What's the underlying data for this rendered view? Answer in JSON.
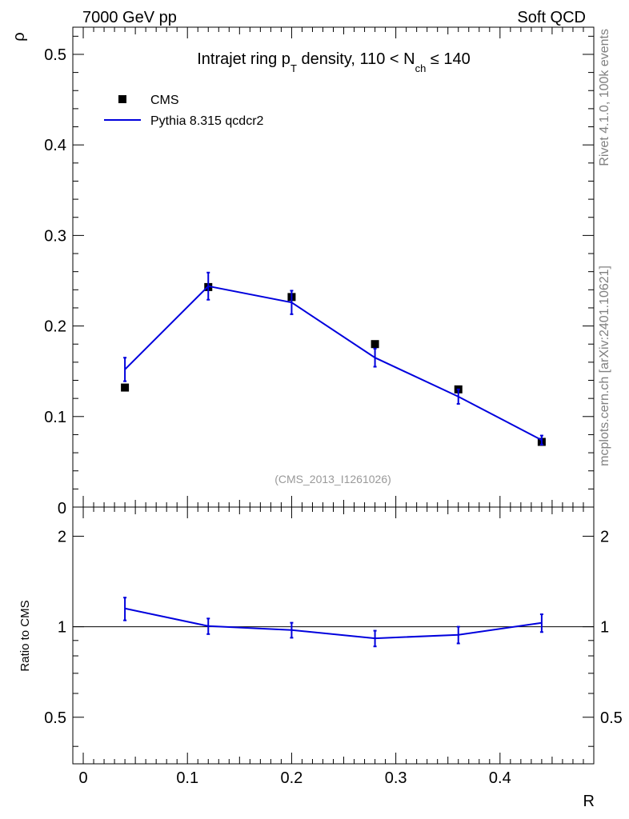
{
  "chart_data": [
    {
      "type": "line",
      "panel": "main",
      "title": "Intrajet ring p_T density, 110 < N_ch ≤ 140",
      "title_parts": {
        "prefix": "Intrajet ring p",
        "sub1": "T",
        "middle": " density, 110 < N",
        "sub2": "ch",
        "suffix": " ≤ 140"
      },
      "top_left": "7000 GeV pp",
      "top_right": "Soft QCD",
      "xlabel": "R",
      "ylabel": "ρ",
      "xlim": [
        -0.01,
        0.49
      ],
      "ylim": [
        0,
        0.53
      ],
      "yticks_major": [
        0.1,
        0.2,
        0.3,
        0.4,
        0.5
      ],
      "ytick_labels": [
        "0.1",
        "0.2",
        "0.3",
        "0.4",
        "0.5"
      ],
      "y_zero_label": "0",
      "legend_position": "top-left",
      "watermark": "(CMS_2013_I1261026)",
      "series": [
        {
          "name": "CMS",
          "style": "markers",
          "color": "#000000",
          "x": [
            0.04,
            0.12,
            0.2,
            0.28,
            0.36,
            0.44
          ],
          "y": [
            0.132,
            0.243,
            0.232,
            0.18,
            0.13,
            0.072
          ]
        },
        {
          "name": "Pythia 8.315 qcdcr2",
          "style": "line",
          "color": "#0000dd",
          "x": [
            0.04,
            0.12,
            0.2,
            0.28,
            0.36,
            0.44
          ],
          "y": [
            0.152,
            0.244,
            0.226,
            0.165,
            0.122,
            0.074
          ],
          "yerr": [
            0.013,
            0.015,
            0.013,
            0.01,
            0.008,
            0.005
          ]
        }
      ]
    },
    {
      "type": "line",
      "panel": "ratio",
      "xlabel": "R",
      "ylabel": "Ratio to CMS",
      "xlim": [
        -0.01,
        0.49
      ],
      "ylim": [
        0.35,
        2.5
      ],
      "xticks_major": [
        0,
        0.1,
        0.2,
        0.3,
        0.4
      ],
      "xtick_labels": [
        "0",
        "0.1",
        "0.2",
        "0.3",
        "0.4"
      ],
      "yticks_labeled": [
        0.5,
        1,
        2
      ],
      "ytick_labels": [
        "0.5",
        "1",
        "2"
      ],
      "reference_line": 1,
      "series": [
        {
          "name": "Pythia 8.315 qcdcr2",
          "color": "#0000dd",
          "x": [
            0.04,
            0.12,
            0.2,
            0.28,
            0.36,
            0.44
          ],
          "y": [
            1.15,
            1.005,
            0.975,
            0.915,
            0.94,
            1.03
          ],
          "yerr": [
            0.1,
            0.06,
            0.056,
            0.055,
            0.06,
            0.07
          ]
        }
      ]
    }
  ],
  "side_text": {
    "rivet": "Rivet 4.1.0,  100k events",
    "mcplots": "mcplots.cern.ch [arXiv:2401.10621]"
  }
}
